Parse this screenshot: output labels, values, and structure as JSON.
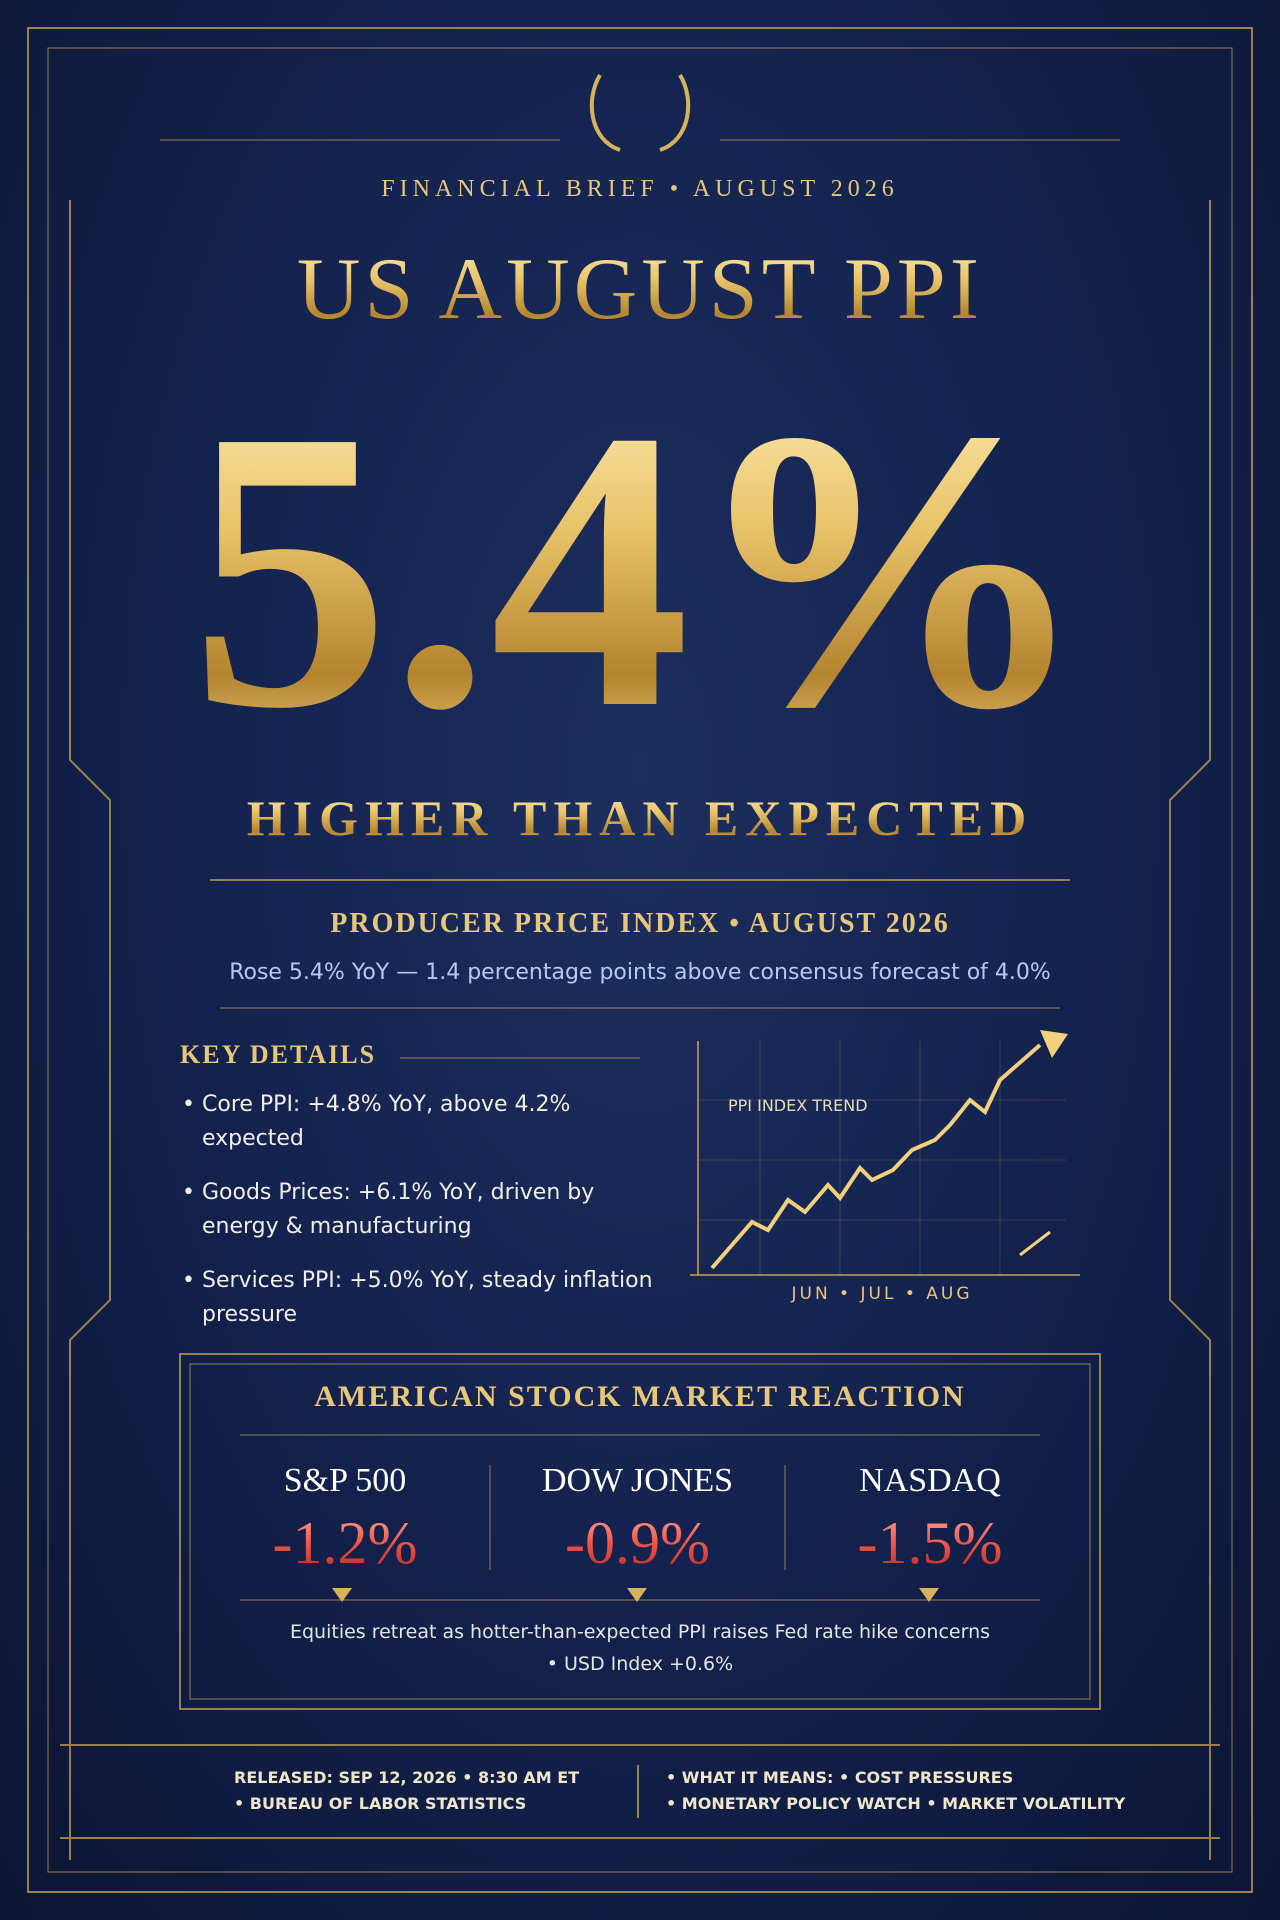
{
  "header": {
    "kicker": "FINANCIAL BRIEF • AUGUST 2026",
    "title": "US AUGUST PPI",
    "headline": "5.4%",
    "subhead": "HIGHER THAN EXPECTED"
  },
  "summary": {
    "title": "PRODUCER PRICE INDEX • AUGUST 2026",
    "text": "Rose 5.4% YoY — 1.4 percentage points above consensus forecast of 4.0%"
  },
  "key_details": {
    "heading": "KEY DETAILS",
    "items": [
      "Core PPI: +4.8% YoY, above 4.2% expected",
      "Goods Prices: +6.1% YoY, driven by energy & manufacturing",
      "Services PPI: +5.0% YoY, steady inflation pressure"
    ]
  },
  "trend": {
    "title": "PPI INDEX TREND",
    "axis_label": "JUN • JUL • AUG"
  },
  "market": {
    "title": "AMERICAN STOCK MARKET REACTION",
    "indices": [
      {
        "name": "S&P 500",
        "change": "-1.2%"
      },
      {
        "name": "DOW JONES",
        "change": "-0.9%"
      },
      {
        "name": "NASDAQ",
        "change": "-1.5%"
      }
    ],
    "note": "Equities retreat as hotter-than-expected PPI raises Fed rate hike concerns",
    "note_extra": "• USD Index +0.6%"
  },
  "footer": {
    "left": [
      "RELEASED: SEP 12, 2026 • 8:30 AM ET",
      "• BUREAU OF LABOR STATISTICS"
    ],
    "right": [
      "• WHAT IT MEANS: • COST PRESSURES",
      "• MONETARY POLICY WATCH • MARKET VOLATILITY"
    ]
  }
}
